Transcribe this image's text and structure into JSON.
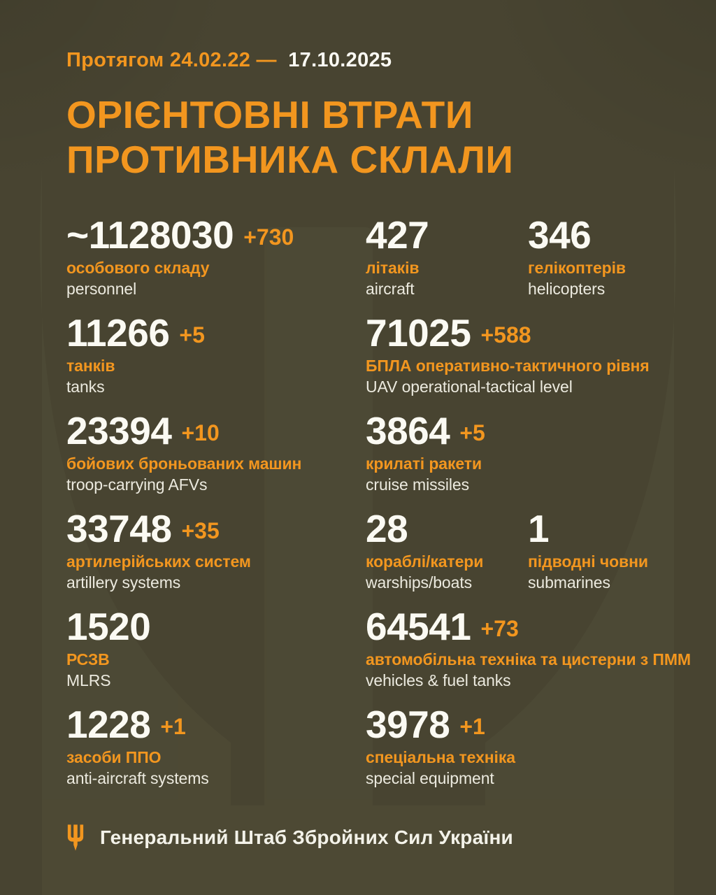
{
  "header": {
    "period_prefix": "Протягом 24.02.22 —",
    "period_date": "17.10.2025",
    "title_line1": "ОРІЄНТОВНІ ВТРАТИ",
    "title_line2": "ПРОТИВНИКА СКЛАЛИ"
  },
  "colors": {
    "background": "#484431",
    "accent_orange": "#F2961F",
    "number_white": "#FBFAF3",
    "label_muted": "#ECEADF"
  },
  "stats": {
    "rows": [
      {
        "cells": [
          {
            "value": "~1128030",
            "delta": "+730",
            "label_uk": "особового складу",
            "label_en": "personnel",
            "span2": false
          },
          {
            "value": "427",
            "delta": "",
            "label_uk": "літаків",
            "label_en": "aircraft",
            "span2": false
          },
          {
            "value": "346",
            "delta": "",
            "label_uk": "гелікоптерів",
            "label_en": "helicopters",
            "span2": false
          }
        ]
      },
      {
        "cells": [
          {
            "value": "11266",
            "delta": "+5",
            "label_uk": "танків",
            "label_en": "tanks",
            "span2": false
          },
          {
            "value": "71025",
            "delta": "+588",
            "label_uk": "БПЛА оперативно-тактичного рівня",
            "label_en": "UAV operational-tactical level",
            "span2": true
          }
        ]
      },
      {
        "cells": [
          {
            "value": "23394",
            "delta": "+10",
            "label_uk": "бойових броньованих машин",
            "label_en": "troop-carrying AFVs",
            "span2": false
          },
          {
            "value": "3864",
            "delta": "+5",
            "label_uk": "крилаті ракети",
            "label_en": "cruise missiles",
            "span2": true
          }
        ]
      },
      {
        "cells": [
          {
            "value": "33748",
            "delta": "+35",
            "label_uk": "артилерійських систем",
            "label_en": "artillery systems",
            "span2": false
          },
          {
            "value": "28",
            "delta": "",
            "label_uk": "кораблі/катери",
            "label_en": "warships/boats",
            "span2": false
          },
          {
            "value": "1",
            "delta": "",
            "label_uk": "підводні човни",
            "label_en": "submarines",
            "span2": false
          }
        ]
      },
      {
        "cells": [
          {
            "value": "1520",
            "delta": "",
            "label_uk": "РСЗВ",
            "label_en": "MLRS",
            "span2": false
          },
          {
            "value": "64541",
            "delta": "+73",
            "label_uk": "автомобільна техніка та цистерни з ПММ",
            "label_en": "vehicles & fuel tanks",
            "span2": true
          }
        ]
      },
      {
        "cells": [
          {
            "value": "1228",
            "delta": "+1",
            "label_uk": "засоби ППО",
            "label_en": "anti-aircraft systems",
            "span2": false
          },
          {
            "value": "3978",
            "delta": "+1",
            "label_uk": "спеціальна техніка",
            "label_en": "special equipment",
            "span2": true
          }
        ]
      }
    ]
  },
  "footer": {
    "icon": "tryzub-icon",
    "source": "Генеральний Штаб Збройних Сил України"
  }
}
